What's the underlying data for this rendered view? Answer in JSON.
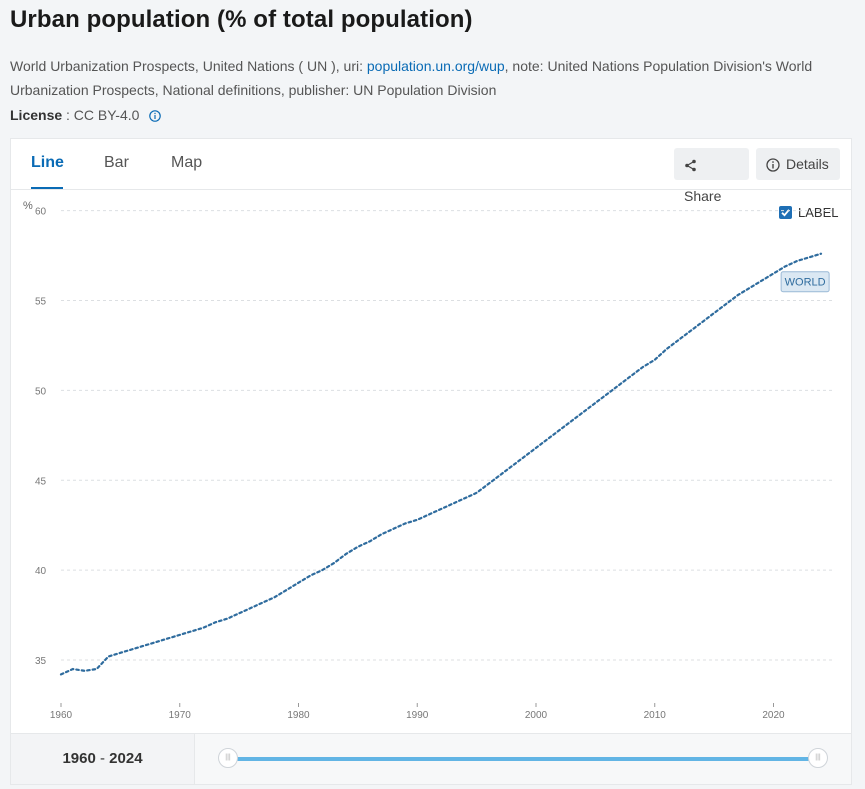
{
  "header": {
    "title": "Urban population (% of total population)",
    "source_prefix": "World Urbanization Prospects, United Nations ( UN ), uri: ",
    "source_link": "population.un.org/wup",
    "source_suffix": ", note: United Nations Population Division's World Urbanization Prospects, National definitions, publisher: UN Population Division",
    "license_label": "License",
    "license_value": ": CC BY-4.0"
  },
  "tabs": [
    {
      "label": "Line",
      "active": true
    },
    {
      "label": "Bar",
      "active": false
    },
    {
      "label": "Map",
      "active": false
    }
  ],
  "actions": {
    "share_label": "Share",
    "details_label": "Details"
  },
  "label_toggle": {
    "label": "LABEL",
    "checked": true
  },
  "range": {
    "start": "1960",
    "separator": " - ",
    "end": "2024"
  },
  "colors": {
    "line": "#2f6c9e",
    "accent": "#0a6bb5",
    "slider": "#62b5e5"
  },
  "chart_data": {
    "type": "line",
    "title": "Urban population (% of total population)",
    "ylabel": "%",
    "xlabel": "",
    "xlim": [
      1960,
      2024
    ],
    "ylim": [
      33,
      61
    ],
    "yticks": [
      35,
      40,
      45,
      50,
      55,
      60
    ],
    "xticks": [
      1960,
      1970,
      1980,
      1990,
      2000,
      2010,
      2020
    ],
    "grid": "horizontal dashed",
    "series": [
      {
        "name": "WORLD",
        "x": [
          1960,
          1961,
          1962,
          1963,
          1964,
          1965,
          1966,
          1967,
          1968,
          1969,
          1970,
          1971,
          1972,
          1973,
          1974,
          1975,
          1976,
          1977,
          1978,
          1979,
          1980,
          1981,
          1982,
          1983,
          1984,
          1985,
          1986,
          1987,
          1988,
          1989,
          1990,
          1991,
          1992,
          1993,
          1994,
          1995,
          1996,
          1997,
          1998,
          1999,
          2000,
          2001,
          2002,
          2003,
          2004,
          2005,
          2006,
          2007,
          2008,
          2009,
          2010,
          2011,
          2012,
          2013,
          2014,
          2015,
          2016,
          2017,
          2018,
          2019,
          2020,
          2021,
          2022,
          2023,
          2024
        ],
        "values": [
          34.2,
          34.5,
          34.4,
          34.5,
          35.2,
          35.4,
          35.6,
          35.8,
          36.0,
          36.2,
          36.4,
          36.6,
          36.8,
          37.1,
          37.3,
          37.6,
          37.9,
          38.2,
          38.5,
          38.9,
          39.3,
          39.7,
          40.0,
          40.4,
          40.9,
          41.3,
          41.6,
          42.0,
          42.3,
          42.6,
          42.8,
          43.1,
          43.4,
          43.7,
          44.0,
          44.3,
          44.8,
          45.3,
          45.8,
          46.3,
          46.8,
          47.3,
          47.8,
          48.3,
          48.8,
          49.3,
          49.8,
          50.3,
          50.8,
          51.3,
          51.7,
          52.3,
          52.8,
          53.3,
          53.8,
          54.3,
          54.8,
          55.3,
          55.7,
          56.1,
          56.5,
          56.9,
          57.2,
          57.4,
          57.6
        ]
      }
    ],
    "annotations": [
      {
        "text": "WORLD",
        "x": 2023,
        "y": 56.6
      }
    ]
  }
}
